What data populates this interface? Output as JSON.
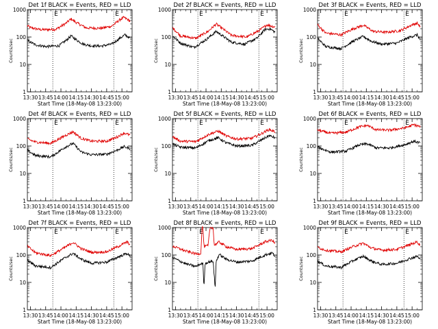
{
  "ylabel": "Counts/sec",
  "xlabel": "Start Time (18-May-08 13:23:00)",
  "x_ticks": [
    "13:30",
    "13:45",
    "14:00",
    "14:15",
    "14:30",
    "14:45",
    "15:00"
  ],
  "y_ticks": [
    "1",
    "10",
    "100",
    "1000"
  ],
  "ylim": [
    1,
    1000
  ],
  "xlim_min": [
    -3,
    100
  ],
  "marker_label": "E",
  "markers_min": [
    22,
    82
  ],
  "colors": {
    "events": "#000000",
    "lld": "#e00000"
  },
  "chart_data": [
    {
      "type": "line",
      "title": "Det 1f BLACK = Events, RED = LLD",
      "series": [
        {
          "name": "Events",
          "knots": [
            [
              -3,
              75
            ],
            [
              0,
              65
            ],
            [
              5,
              52
            ],
            [
              15,
              45
            ],
            [
              28,
              48
            ],
            [
              35,
              75
            ],
            [
              40,
              110
            ],
            [
              45,
              80
            ],
            [
              52,
              55
            ],
            [
              60,
              48
            ],
            [
              70,
              47
            ],
            [
              80,
              55
            ],
            [
              88,
              90
            ],
            [
              93,
              120
            ],
            [
              98,
              90
            ]
          ]
        },
        {
          "name": "LLD",
          "knots": [
            [
              -3,
              260
            ],
            [
              0,
              220
            ],
            [
              10,
              185
            ],
            [
              25,
              190
            ],
            [
              35,
              320
            ],
            [
              40,
              460
            ],
            [
              45,
              340
            ],
            [
              55,
              215
            ],
            [
              70,
              210
            ],
            [
              80,
              250
            ],
            [
              88,
              430
            ],
            [
              92,
              520
            ],
            [
              98,
              380
            ]
          ]
        }
      ]
    },
    {
      "type": "line",
      "title": "Det 2f BLACK = Events, RED = LLD",
      "series": [
        {
          "name": "Events",
          "knots": [
            [
              -3,
              110
            ],
            [
              5,
              60
            ],
            [
              18,
              42
            ],
            [
              30,
              80
            ],
            [
              40,
              160
            ],
            [
              45,
              120
            ],
            [
              55,
              65
            ],
            [
              68,
              55
            ],
            [
              80,
              90
            ],
            [
              88,
              190
            ],
            [
              93,
              200
            ],
            [
              98,
              150
            ]
          ]
        },
        {
          "name": "LLD",
          "knots": [
            [
              -3,
              220
            ],
            [
              5,
              110
            ],
            [
              20,
              90
            ],
            [
              32,
              160
            ],
            [
              40,
              300
            ],
            [
              45,
              220
            ],
            [
              55,
              115
            ],
            [
              70,
              100
            ],
            [
              82,
              170
            ],
            [
              90,
              280
            ],
            [
              98,
              230
            ]
          ]
        }
      ]
    },
    {
      "type": "line",
      "title": "Det 3f BLACK = Events, RED = LLD",
      "series": [
        {
          "name": "Events",
          "knots": [
            [
              -3,
              90
            ],
            [
              5,
              45
            ],
            [
              20,
              38
            ],
            [
              32,
              70
            ],
            [
              42,
              105
            ],
            [
              50,
              70
            ],
            [
              60,
              55
            ],
            [
              75,
              60
            ],
            [
              88,
              100
            ],
            [
              95,
              120
            ],
            [
              98,
              80
            ]
          ]
        },
        {
          "name": "LLD",
          "knots": [
            [
              -3,
              280
            ],
            [
              5,
              140
            ],
            [
              20,
              120
            ],
            [
              32,
              200
            ],
            [
              42,
              270
            ],
            [
              52,
              160
            ],
            [
              65,
              150
            ],
            [
              78,
              170
            ],
            [
              90,
              280
            ],
            [
              95,
              320
            ],
            [
              98,
              240
            ]
          ]
        }
      ]
    },
    {
      "type": "line",
      "title": "Det 4f BLACK = Events, RED = LLD",
      "series": [
        {
          "name": "Events",
          "knots": [
            [
              -3,
              70
            ],
            [
              5,
              45
            ],
            [
              20,
              40
            ],
            [
              35,
              95
            ],
            [
              42,
              125
            ],
            [
              50,
              60
            ],
            [
              60,
              48
            ],
            [
              75,
              50
            ],
            [
              85,
              70
            ],
            [
              92,
              95
            ],
            [
              98,
              80
            ]
          ]
        },
        {
          "name": "LLD",
          "knots": [
            [
              -3,
              180
            ],
            [
              5,
              140
            ],
            [
              20,
              125
            ],
            [
              35,
              250
            ],
            [
              42,
              330
            ],
            [
              50,
              190
            ],
            [
              60,
              150
            ],
            [
              75,
              150
            ],
            [
              85,
              210
            ],
            [
              92,
              300
            ],
            [
              98,
              250
            ]
          ]
        }
      ]
    },
    {
      "type": "line",
      "title": "Det 5f BLACK = Events, RED = LLD",
      "series": [
        {
          "name": "Events",
          "knots": [
            [
              -3,
              120
            ],
            [
              5,
              90
            ],
            [
              20,
              85
            ],
            [
              33,
              160
            ],
            [
              42,
              200
            ],
            [
              50,
              130
            ],
            [
              60,
              100
            ],
            [
              75,
              105
            ],
            [
              85,
              170
            ],
            [
              92,
              240
            ],
            [
              98,
              200
            ]
          ]
        },
        {
          "name": "LLD",
          "knots": [
            [
              -3,
              220
            ],
            [
              5,
              150
            ],
            [
              20,
              145
            ],
            [
              33,
              270
            ],
            [
              42,
              350
            ],
            [
              50,
              230
            ],
            [
              60,
              180
            ],
            [
              75,
              190
            ],
            [
              85,
              290
            ],
            [
              92,
              400
            ],
            [
              98,
              330
            ]
          ]
        }
      ]
    },
    {
      "type": "line",
      "title": "Det 6f BLACK = Events, RED = LLD",
      "series": [
        {
          "name": "Events",
          "knots": [
            [
              -3,
              90
            ],
            [
              10,
              60
            ],
            [
              25,
              65
            ],
            [
              38,
              110
            ],
            [
              46,
              120
            ],
            [
              55,
              85
            ],
            [
              68,
              85
            ],
            [
              82,
              110
            ],
            [
              92,
              150
            ],
            [
              98,
              130
            ]
          ]
        },
        {
          "name": "LLD",
          "knots": [
            [
              -3,
              380
            ],
            [
              10,
              290
            ],
            [
              25,
              320
            ],
            [
              38,
              500
            ],
            [
              46,
              560
            ],
            [
              55,
              390
            ],
            [
              68,
              380
            ],
            [
              82,
              450
            ],
            [
              92,
              600
            ],
            [
              98,
              500
            ]
          ]
        }
      ]
    },
    {
      "type": "line",
      "title": "Det 7f BLACK = Events, RED = LLD",
      "series": [
        {
          "name": "Events",
          "knots": [
            [
              -3,
              65
            ],
            [
              5,
              40
            ],
            [
              20,
              35
            ],
            [
              33,
              75
            ],
            [
              42,
              115
            ],
            [
              50,
              70
            ],
            [
              60,
              50
            ],
            [
              75,
              55
            ],
            [
              88,
              90
            ],
            [
              95,
              115
            ],
            [
              98,
              90
            ]
          ]
        },
        {
          "name": "LLD",
          "knots": [
            [
              -3,
              210
            ],
            [
              5,
              120
            ],
            [
              20,
              95
            ],
            [
              33,
              180
            ],
            [
              42,
              290
            ],
            [
              50,
              170
            ],
            [
              60,
              125
            ],
            [
              75,
              130
            ],
            [
              88,
              220
            ],
            [
              95,
              300
            ],
            [
              98,
              240
            ]
          ]
        }
      ]
    },
    {
      "type": "line",
      "title": "Det 8f BLACK = Events, RED = LLD",
      "series": [
        {
          "name": "Events",
          "knots": [
            [
              -3,
              80
            ],
            [
              10,
              48
            ],
            [
              20,
              38
            ],
            [
              25,
              48
            ],
            [
              27,
              48
            ],
            [
              28,
              6
            ],
            [
              29,
              48
            ],
            [
              32,
              55
            ],
            [
              37,
              60
            ],
            [
              39,
              6
            ],
            [
              40,
              60
            ],
            [
              43,
              105
            ],
            [
              50,
              70
            ],
            [
              60,
              55
            ],
            [
              75,
              60
            ],
            [
              88,
              100
            ],
            [
              95,
              120
            ],
            [
              98,
              90
            ]
          ]
        },
        {
          "name": "LLD",
          "knots": [
            [
              -3,
              210
            ],
            [
              10,
              140
            ],
            [
              20,
              110
            ],
            [
              25,
              115
            ],
            [
              26,
              1000
            ],
            [
              27,
              1000
            ],
            [
              28,
              200
            ],
            [
              32,
              220
            ],
            [
              34,
              1000
            ],
            [
              37,
              1000
            ],
            [
              38,
              230
            ],
            [
              43,
              300
            ],
            [
              50,
              200
            ],
            [
              60,
              160
            ],
            [
              75,
              170
            ],
            [
              88,
              300
            ],
            [
              95,
              350
            ],
            [
              98,
              260
            ]
          ]
        }
      ]
    },
    {
      "type": "line",
      "title": "Det 9f BLACK = Events, RED = LLD",
      "series": [
        {
          "name": "Events",
          "knots": [
            [
              -3,
              60
            ],
            [
              5,
              40
            ],
            [
              20,
              35
            ],
            [
              33,
              65
            ],
            [
              42,
              90
            ],
            [
              50,
              60
            ],
            [
              60,
              45
            ],
            [
              75,
              50
            ],
            [
              88,
              75
            ],
            [
              95,
              90
            ],
            [
              98,
              70
            ]
          ]
        },
        {
          "name": "LLD",
          "knots": [
            [
              -3,
              190
            ],
            [
              5,
              150
            ],
            [
              20,
              130
            ],
            [
              33,
              210
            ],
            [
              42,
              270
            ],
            [
              50,
              180
            ],
            [
              60,
              150
            ],
            [
              75,
              160
            ],
            [
              88,
              240
            ],
            [
              95,
              300
            ],
            [
              98,
              230
            ]
          ]
        }
      ]
    }
  ]
}
